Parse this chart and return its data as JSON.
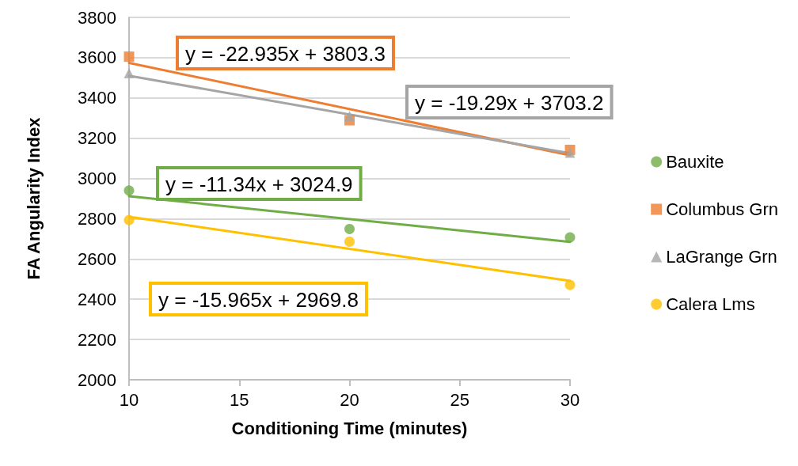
{
  "chart_data": {
    "type": "scatter",
    "xlabel": "Conditioning Time (minutes)",
    "ylabel": "FA Angularity Index",
    "xlim": [
      10,
      30
    ],
    "xticks": [
      10,
      15,
      20,
      25,
      30
    ],
    "ylim": [
      2000,
      3800
    ],
    "yticks": [
      2000,
      2200,
      2400,
      2600,
      2800,
      3000,
      3200,
      3400,
      3600,
      3800
    ],
    "grid": "y",
    "legend": "right",
    "series": [
      {
        "name": "Bauxite",
        "color": "#70ad47",
        "marker": "circle",
        "x": [
          10,
          20,
          30
        ],
        "values": [
          2940,
          2749,
          2707
        ]
      },
      {
        "name": "Columbus Grn",
        "color": "#ed7d31",
        "marker": "square",
        "x": [
          10,
          20,
          30
        ],
        "values": [
          3605,
          3289,
          3142
        ]
      },
      {
        "name": "LaGrange Grn",
        "color": "#a5a5a5",
        "marker": "triangle",
        "x": [
          10,
          20,
          30
        ],
        "values": [
          3523,
          3310,
          3128
        ]
      },
      {
        "name": "Calera Lms",
        "color": "#ffc000",
        "marker": "circle",
        "x": [
          10,
          20,
          30
        ],
        "values": [
          2793,
          2686,
          2471
        ]
      },
      {
        "type": "line",
        "color": "#ed7d31",
        "marker": "none",
        "x": [
          10,
          30
        ],
        "values": [
          3574,
          3115
        ]
      },
      {
        "type": "line",
        "color": "#a5a5a5",
        "marker": "none",
        "x": [
          10,
          30
        ],
        "values": [
          3510,
          3125
        ]
      },
      {
        "type": "line",
        "color": "#70ad47",
        "marker": "none",
        "x": [
          10,
          30
        ],
        "values": [
          2912,
          2685
        ]
      },
      {
        "type": "line",
        "color": "#ffc000",
        "marker": "none",
        "x": [
          10,
          30
        ],
        "values": [
          2810,
          2491
        ]
      }
    ],
    "annotations": [
      "y = -22.935x + 3803.3",
      "y = -19.29x + 3703.2",
      "y = -11.34x + 3024.9",
      "y = -15.965x + 2969.8"
    ]
  }
}
